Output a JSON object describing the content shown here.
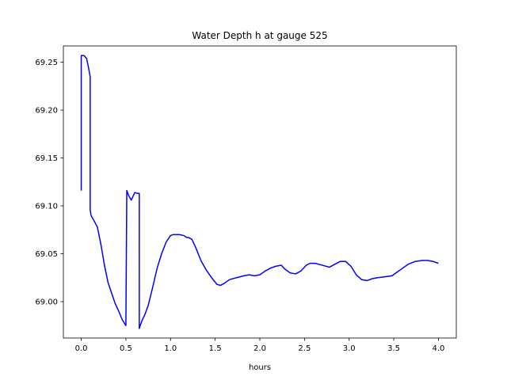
{
  "chart_data": {
    "type": "line",
    "title": "Water Depth h at gauge 525",
    "xlabel": "hours",
    "ylabel": "",
    "xlim": [
      -0.2,
      4.2
    ],
    "ylim": [
      68.962,
      69.267
    ],
    "xticks": [
      0.0,
      0.5,
      1.0,
      1.5,
      2.0,
      2.5,
      3.0,
      3.5,
      4.0
    ],
    "xtick_labels": [
      "0.0",
      "0.5",
      "1.0",
      "1.5",
      "2.0",
      "2.5",
      "3.0",
      "3.5",
      "4.0"
    ],
    "yticks": [
      69.0,
      69.05,
      69.1,
      69.15,
      69.2,
      69.25
    ],
    "ytick_labels": [
      "69.00",
      "69.05",
      "69.10",
      "69.15",
      "69.20",
      "69.25"
    ],
    "grid": false,
    "legend": "none",
    "series": [
      {
        "color": "#0000ff",
        "x": [
          0.0,
          0.0,
          0.03,
          0.06,
          0.08,
          0.1,
          0.1,
          0.11,
          0.14,
          0.18,
          0.22,
          0.26,
          0.3,
          0.34,
          0.38,
          0.42,
          0.46,
          0.5,
          0.51,
          0.51,
          0.53,
          0.56,
          0.58,
          0.6,
          0.63,
          0.65,
          0.65,
          0.66,
          0.68,
          0.71,
          0.75,
          0.8,
          0.85,
          0.9,
          0.95,
          1.0,
          1.03,
          1.06,
          1.1,
          1.15,
          1.18,
          1.2,
          1.24,
          1.28,
          1.34,
          1.4,
          1.46,
          1.52,
          1.56,
          1.6,
          1.66,
          1.74,
          1.82,
          1.88,
          1.94,
          2.0,
          2.06,
          2.12,
          2.18,
          2.24,
          2.28,
          2.34,
          2.4,
          2.46,
          2.52,
          2.56,
          2.62,
          2.7,
          2.78,
          2.84,
          2.9,
          2.96,
          3.02,
          3.08,
          3.14,
          3.2,
          3.26,
          3.32,
          3.4,
          3.48,
          3.54,
          3.6,
          3.66,
          3.74,
          3.82,
          3.88,
          3.94,
          4.0
        ],
        "y": [
          69.116,
          69.257,
          69.257,
          69.254,
          69.245,
          69.235,
          69.096,
          69.09,
          69.085,
          69.078,
          69.06,
          69.038,
          69.02,
          69.009,
          68.998,
          68.99,
          68.981,
          68.975,
          69.116,
          69.116,
          69.111,
          69.106,
          69.11,
          69.114,
          69.113,
          69.113,
          68.972,
          68.975,
          68.98,
          68.986,
          68.996,
          69.015,
          69.035,
          69.05,
          69.062,
          69.069,
          69.07,
          69.07,
          69.07,
          69.069,
          69.067,
          69.067,
          69.065,
          69.057,
          69.043,
          69.033,
          69.025,
          69.018,
          69.017,
          69.019,
          69.023,
          69.025,
          69.027,
          69.028,
          69.027,
          69.028,
          69.032,
          69.035,
          69.037,
          69.038,
          69.034,
          69.03,
          69.029,
          69.032,
          69.038,
          69.04,
          69.04,
          69.038,
          69.036,
          69.039,
          69.042,
          69.042,
          69.037,
          69.028,
          69.023,
          69.022,
          69.024,
          69.025,
          69.026,
          69.027,
          69.031,
          69.035,
          69.039,
          69.042,
          69.043,
          69.043,
          69.042,
          69.04
        ]
      }
    ]
  }
}
